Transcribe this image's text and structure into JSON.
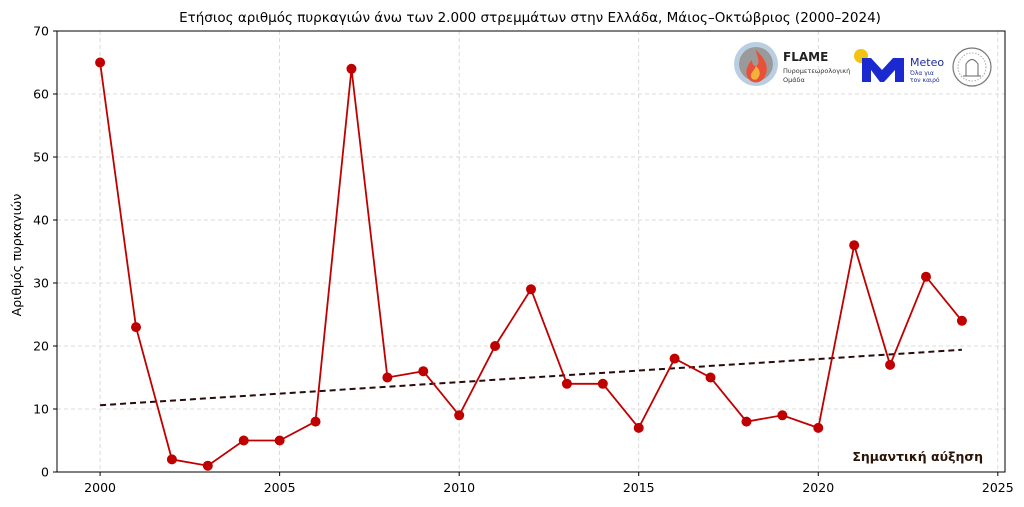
{
  "chart_data": {
    "type": "line",
    "title": "Ετήσιος αριθμός πυρκαγιών άνω των 2.000 στρεμμάτων στην Ελλάδα, Μάιος–Οκτώβριος (2000–2024)",
    "xlabel": "",
    "ylabel": "Αριθμός πυρκαγιών",
    "xlim": [
      1998.8,
      2025.2
    ],
    "ylim": [
      0,
      70
    ],
    "xticks": [
      2000,
      2005,
      2010,
      2015,
      2020,
      2025
    ],
    "yticks": [
      0,
      10,
      20,
      30,
      40,
      50,
      60,
      70
    ],
    "grid": true,
    "x": [
      2000,
      2001,
      2002,
      2003,
      2004,
      2005,
      2006,
      2007,
      2008,
      2009,
      2010,
      2011,
      2012,
      2013,
      2014,
      2015,
      2016,
      2017,
      2018,
      2019,
      2020,
      2021,
      2022,
      2023,
      2024
    ],
    "series": [
      {
        "values": [
          65,
          23,
          2,
          1,
          5,
          5,
          8,
          64,
          15,
          16,
          9,
          20,
          29,
          14,
          14,
          7,
          18,
          15,
          8,
          9,
          7,
          36,
          17,
          31,
          24
        ],
        "color": "#c00000"
      }
    ],
    "trend": {
      "x": [
        2000,
        2024
      ],
      "y": [
        10.6,
        19.4
      ],
      "color": "#2a0a0a",
      "style": "dashed"
    },
    "annotation": "Σημαντική αύξηση"
  },
  "logos": {
    "flame": {
      "name": "FLAME",
      "sub1": "Πυρομετεωρολογική",
      "sub2": "Ομάδα"
    },
    "meteo": {
      "name": "Meteo",
      "sub1": "Όλα για",
      "sub2": "τον καιρό",
      "accent": "#1a2ad0"
    }
  }
}
